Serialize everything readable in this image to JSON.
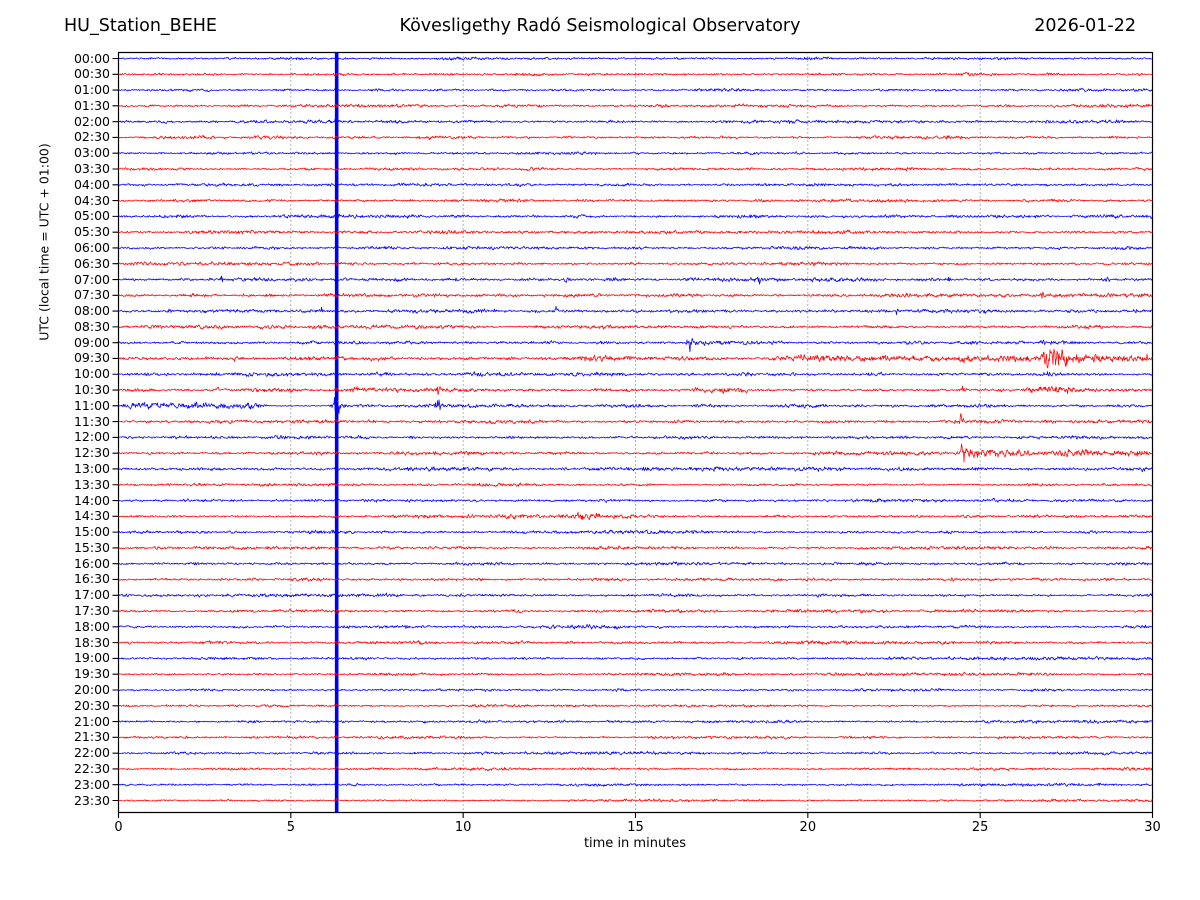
{
  "header": {
    "station": "HU_Station_BEHE",
    "observatory": "Kövesligethy Radó Seismological Observatory",
    "date": "2026-01-22"
  },
  "chart_data": {
    "type": "line",
    "subtype": "helicorder-dayplot",
    "station": "HU_Station_BEHE",
    "title": "Kövesligethy Radó Seismological Observatory",
    "date": "2026-01-22",
    "xlabel": "time in minutes",
    "ylabel": "UTC (local time = UTC + 01:00)",
    "xlim": [
      0,
      30
    ],
    "x_ticks": [
      0,
      5,
      10,
      15,
      20,
      25,
      30
    ],
    "grid": "vertical dotted lines at 5,10,15,20,25 minutes",
    "minutes_per_line": 30,
    "trace_colors": {
      "even_rows": "#0000ff",
      "odd_rows": "#ff0000"
    },
    "frame_color": "#000000",
    "vertical_line": {
      "minute": 6.33,
      "color": "#0000ee"
    },
    "rows": [
      {
        "label": "00:00",
        "color": "#0000ff",
        "amp": 2.1
      },
      {
        "label": "00:30",
        "color": "#ff0000",
        "amp": 2.0
      },
      {
        "label": "01:00",
        "color": "#0000ff",
        "amp": 2.0
      },
      {
        "label": "01:30",
        "color": "#ff0000",
        "amp": 2.1
      },
      {
        "label": "02:00",
        "color": "#0000ff",
        "amp": 2.2
      },
      {
        "label": "02:30",
        "color": "#ff0000",
        "amp": 2.1
      },
      {
        "label": "03:00",
        "color": "#0000ff",
        "amp": 2.0
      },
      {
        "label": "03:30",
        "color": "#ff0000",
        "amp": 2.0
      },
      {
        "label": "04:00",
        "color": "#0000ff",
        "amp": 2.2
      },
      {
        "label": "04:30",
        "color": "#ff0000",
        "amp": 2.1
      },
      {
        "label": "05:00",
        "color": "#0000ff",
        "amp": 2.3
      },
      {
        "label": "05:30",
        "color": "#ff0000",
        "amp": 2.2
      },
      {
        "label": "06:00",
        "color": "#0000ff",
        "amp": 2.2
      },
      {
        "label": "06:30",
        "color": "#ff0000",
        "amp": 2.2
      },
      {
        "label": "07:00",
        "color": "#0000ff",
        "amp": 2.6
      },
      {
        "label": "07:30",
        "color": "#ff0000",
        "amp": 2.3
      },
      {
        "label": "08:00",
        "color": "#0000ff",
        "amp": 2.6
      },
      {
        "label": "08:30",
        "color": "#ff0000",
        "amp": 2.4
      },
      {
        "label": "09:00",
        "color": "#0000ff",
        "amp": 2.5
      },
      {
        "label": "09:30",
        "color": "#ff0000",
        "amp": 3.0
      },
      {
        "label": "10:00",
        "color": "#0000ff",
        "amp": 2.6
      },
      {
        "label": "10:30",
        "color": "#ff0000",
        "amp": 2.6
      },
      {
        "label": "11:00",
        "color": "#0000ff",
        "amp": 2.3
      },
      {
        "label": "11:30",
        "color": "#ff0000",
        "amp": 2.3
      },
      {
        "label": "12:00",
        "color": "#0000ff",
        "amp": 2.4
      },
      {
        "label": "12:30",
        "color": "#ff0000",
        "amp": 2.4
      },
      {
        "label": "13:00",
        "color": "#0000ff",
        "amp": 2.6
      },
      {
        "label": "13:30",
        "color": "#ff0000",
        "amp": 2.1
      },
      {
        "label": "14:00",
        "color": "#0000ff",
        "amp": 2.3
      },
      {
        "label": "14:30",
        "color": "#ff0000",
        "amp": 2.2
      },
      {
        "label": "15:00",
        "color": "#0000ff",
        "amp": 2.3
      },
      {
        "label": "15:30",
        "color": "#ff0000",
        "amp": 2.1
      },
      {
        "label": "16:00",
        "color": "#0000ff",
        "amp": 2.2
      },
      {
        "label": "16:30",
        "color": "#ff0000",
        "amp": 2.1
      },
      {
        "label": "17:00",
        "color": "#0000ff",
        "amp": 2.2
      },
      {
        "label": "17:30",
        "color": "#ff0000",
        "amp": 2.2
      },
      {
        "label": "18:00",
        "color": "#0000ff",
        "amp": 2.3
      },
      {
        "label": "18:30",
        "color": "#ff0000",
        "amp": 2.2
      },
      {
        "label": "19:00",
        "color": "#0000ff",
        "amp": 2.1
      },
      {
        "label": "19:30",
        "color": "#ff0000",
        "amp": 2.0
      },
      {
        "label": "20:00",
        "color": "#0000ff",
        "amp": 1.9
      },
      {
        "label": "20:30",
        "color": "#ff0000",
        "amp": 1.9
      },
      {
        "label": "21:00",
        "color": "#0000ff",
        "amp": 2.0
      },
      {
        "label": "21:30",
        "color": "#ff0000",
        "amp": 1.8
      },
      {
        "label": "22:00",
        "color": "#0000ff",
        "amp": 2.0
      },
      {
        "label": "22:30",
        "color": "#ff0000",
        "amp": 1.9
      },
      {
        "label": "23:00",
        "color": "#0000ff",
        "amp": 1.9
      },
      {
        "label": "23:30",
        "color": "#ff0000",
        "amp": 1.8
      }
    ],
    "events": [
      {
        "row": "02:30",
        "type": "burst",
        "start": 23.9,
        "end": 24.8,
        "amp": 3.0
      },
      {
        "row": "07:00",
        "type": "spike",
        "minute": 3.0,
        "amp": 6
      },
      {
        "row": "07:00",
        "type": "spike",
        "minute": 8.1,
        "amp": 6
      },
      {
        "row": "07:00",
        "type": "spike",
        "minute": 9.8,
        "amp": 5
      },
      {
        "row": "07:00",
        "type": "spike",
        "minute": 13.0,
        "amp": 5
      },
      {
        "row": "07:00",
        "type": "spike",
        "minute": 18.6,
        "amp": 6
      },
      {
        "row": "07:00",
        "type": "spike",
        "minute": 24.1,
        "amp": 4
      },
      {
        "row": "07:00",
        "type": "spike",
        "minute": 28.7,
        "amp": 5
      },
      {
        "row": "07:30",
        "type": "spike",
        "minute": 26.8,
        "amp": 8
      },
      {
        "row": "08:00",
        "type": "spike",
        "minute": 1.5,
        "amp": 5
      },
      {
        "row": "08:00",
        "type": "spike",
        "minute": 5.9,
        "amp": 4
      },
      {
        "row": "08:00",
        "type": "spike",
        "minute": 8.6,
        "amp": 7
      },
      {
        "row": "08:00",
        "type": "spike",
        "minute": 12.7,
        "amp": 6
      },
      {
        "row": "08:00",
        "type": "spike",
        "minute": 22.6,
        "amp": 4
      },
      {
        "row": "08:00",
        "type": "spike",
        "minute": 29.5,
        "amp": 4
      },
      {
        "row": "09:00",
        "type": "spike",
        "minute": 16.6,
        "amp": 12,
        "width": 0.08
      },
      {
        "row": "09:00",
        "type": "burst",
        "start": 16.4,
        "end": 17.6,
        "amp": 3.5
      },
      {
        "row": "09:00",
        "type": "burst",
        "start": 26.7,
        "end": 27.6,
        "amp": 3
      },
      {
        "row": "09:30",
        "type": "spike",
        "minute": 3.4,
        "amp": 9
      },
      {
        "row": "09:30",
        "type": "burst",
        "start": 13.2,
        "end": 16.8,
        "amp": 3.5
      },
      {
        "row": "09:30",
        "type": "band",
        "start": 19.5,
        "end": 30,
        "amp": 2.5
      },
      {
        "row": "09:30",
        "type": "burst",
        "start": 26.75,
        "end": 28.6,
        "amp": 15
      },
      {
        "row": "09:30",
        "type": "spike",
        "minute": 29.85,
        "amp": 7
      },
      {
        "row": "10:00",
        "type": "spike",
        "minute": 6.33,
        "amp": 5
      },
      {
        "row": "10:00",
        "type": "burst",
        "start": 26.9,
        "end": 27.5,
        "amp": 3
      },
      {
        "row": "10:30",
        "type": "spike",
        "minute": 2.9,
        "amp": 5
      },
      {
        "row": "10:30",
        "type": "spike",
        "minute": 6.9,
        "amp": 8
      },
      {
        "row": "10:30",
        "type": "spike",
        "minute": 9.28,
        "amp": 7
      },
      {
        "row": "10:30",
        "type": "band",
        "start": 16.6,
        "end": 18.4,
        "amp": 2.5
      },
      {
        "row": "10:30",
        "type": "spike",
        "minute": 24.5,
        "amp": 5
      },
      {
        "row": "10:30",
        "type": "band",
        "start": 26.3,
        "end": 27.8,
        "amp": 2.5
      },
      {
        "row": "11:00",
        "type": "band",
        "start": 0,
        "end": 4.25,
        "amp": 3.0
      },
      {
        "row": "11:00",
        "type": "quiet",
        "start": 4.3,
        "end": 6.15,
        "factor": 0.5
      },
      {
        "row": "11:00",
        "type": "spike",
        "minute": 6.33,
        "amp": 15,
        "width": 0.13
      },
      {
        "row": "11:00",
        "type": "spike",
        "minute": 9.28,
        "amp": 13,
        "width": 0.07
      },
      {
        "row": "11:00",
        "type": "quiet",
        "start": 16.15,
        "end": 16.6,
        "factor": 0.3
      },
      {
        "row": "11:30",
        "type": "spike",
        "minute": 24.45,
        "amp": 10
      },
      {
        "row": "12:30",
        "type": "spike",
        "minute": 24.5,
        "amp": 13,
        "width": 0.1
      },
      {
        "row": "12:30",
        "type": "burst",
        "start": 24.4,
        "end": 30,
        "amp": 6
      },
      {
        "row": "12:30",
        "type": "band",
        "start": 27,
        "end": 30,
        "amp": 2
      },
      {
        "row": "14:30",
        "type": "burst",
        "start": 11.2,
        "end": 12.0,
        "amp": 2.5
      },
      {
        "row": "14:30",
        "type": "burst",
        "start": 13.1,
        "end": 15.2,
        "amp": 4
      }
    ]
  }
}
